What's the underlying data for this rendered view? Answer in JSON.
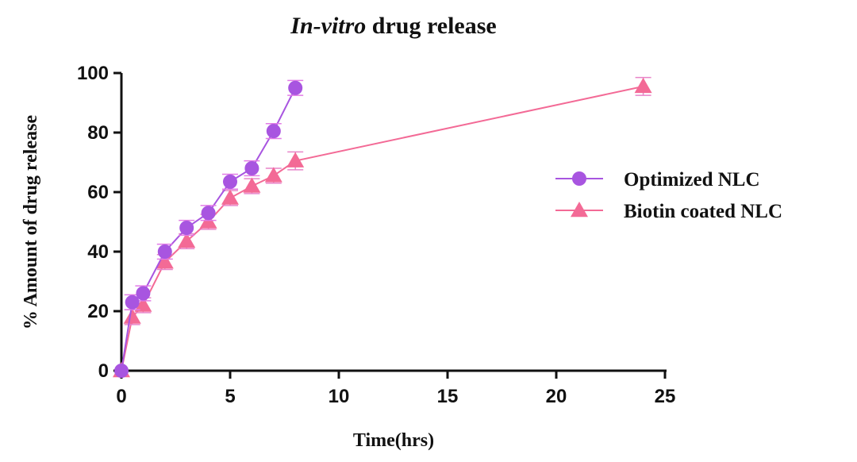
{
  "chart_data": {
    "type": "line",
    "title_italic": "In-vitro",
    "title_rest": " drug release",
    "xlabel": "Time(hrs)",
    "ylabel": "% Amount of drug release",
    "xlim": [
      0,
      25
    ],
    "ylim": [
      0,
      100
    ],
    "x_ticks": [
      "0",
      "5",
      "10",
      "15",
      "20",
      "25"
    ],
    "y_ticks": [
      "0",
      "20",
      "40",
      "60",
      "80",
      "100"
    ],
    "grid": false,
    "legend_placement": "right",
    "series": [
      {
        "name": "Optimized NLC",
        "marker": "circle",
        "color": "#A855E0",
        "error_color": "#E27BE6",
        "x": [
          0,
          0.5,
          1,
          2,
          3,
          4,
          5,
          6,
          7,
          8
        ],
        "y": [
          0,
          23,
          26,
          40,
          48,
          53,
          63.5,
          68,
          80.5,
          95
        ],
        "error": [
          0,
          2.5,
          2.5,
          2.5,
          2.5,
          2.5,
          2.5,
          2.5,
          2.5,
          2.5
        ]
      },
      {
        "name": "Biotin coated NLC",
        "marker": "triangle",
        "color": "#F36A96",
        "error_color": "#E884C9",
        "x": [
          0,
          0.5,
          1,
          2,
          3,
          4,
          5,
          6,
          7,
          8,
          24
        ],
        "y": [
          0,
          18,
          22,
          36.5,
          43.5,
          50,
          58,
          62,
          65.5,
          70.5,
          95.5
        ],
        "error": [
          0,
          2.5,
          2.5,
          2.5,
          2.5,
          2.5,
          2.5,
          2.5,
          2.5,
          3,
          3
        ]
      }
    ]
  }
}
